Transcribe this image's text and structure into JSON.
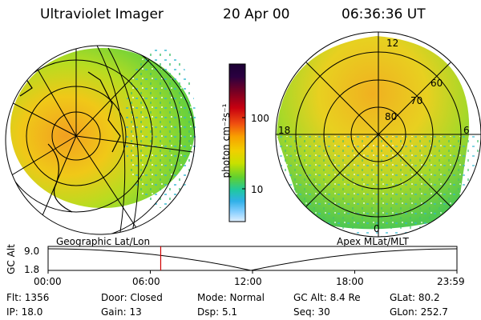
{
  "header": {
    "title": "Ultraviolet Imager",
    "date": "20 Apr 00",
    "time": "06:36:36 UT"
  },
  "colorbar": {
    "label": "photon cm⁻²s⁻¹",
    "ticks": [
      "100",
      "10"
    ],
    "colors": [
      "#1a0033",
      "#2a0040",
      "#7a0022",
      "#c80010",
      "#f05010",
      "#f8a000",
      "#f0d000",
      "#c8e000",
      "#60d030",
      "#20c8a0",
      "#30b0e8",
      "#8ad0ff",
      "#e0f0ff"
    ]
  },
  "left_map": {
    "label": "Geographic Lat/Lon"
  },
  "right_map": {
    "label": "Apex MLat/MLT",
    "lat_labels": [
      "80",
      "70",
      "60"
    ],
    "mlt_labels": [
      "12",
      "18",
      "6",
      "0"
    ]
  },
  "timeline": {
    "ylabel": "GC Alt",
    "y_ticks": [
      "9.0",
      "1.8"
    ],
    "x_ticks": [
      "00:00",
      "06:00",
      "12:00",
      "18:00",
      "23:59"
    ],
    "current_time_hours": 6.61,
    "marker_color": "#d00000"
  },
  "status": {
    "flt": "Flt:  1356",
    "ip": "IP: 18.0",
    "door": "Door: Closed",
    "gain": "Gain: 13",
    "mode": "Mode: Normal",
    "dsp": "Dsp:     5.1",
    "gcalt": "GC Alt: 8.4 Re",
    "seq": "Seq: 30",
    "glat": "GLat:  80.2",
    "glon": "GLon: 252.7"
  }
}
